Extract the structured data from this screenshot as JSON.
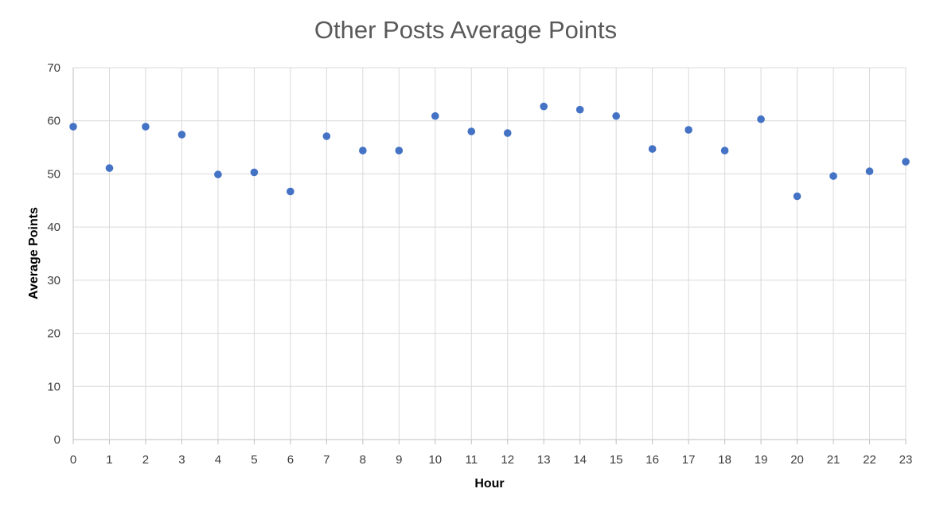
{
  "chart_data": {
    "type": "scatter",
    "title": "Other Posts Average Points",
    "xlabel": "Hour",
    "ylabel": "Average Points",
    "xlim": [
      0,
      23
    ],
    "ylim": [
      0,
      70
    ],
    "x_ticks": [
      "0",
      "1",
      "2",
      "3",
      "4",
      "5",
      "6",
      "7",
      "8",
      "9",
      "10",
      "11",
      "12",
      "13",
      "14",
      "15",
      "16",
      "17",
      "18",
      "19",
      "20",
      "21",
      "22",
      "23"
    ],
    "y_ticks": [
      "0",
      "10",
      "20",
      "30",
      "40",
      "50",
      "60",
      "70"
    ],
    "grid": true,
    "legend": "none",
    "series": [
      {
        "x": [
          0,
          1,
          2,
          3,
          4,
          5,
          6,
          7,
          8,
          9,
          10,
          11,
          12,
          13,
          14,
          15,
          16,
          17,
          18,
          19,
          20,
          21,
          22,
          23
        ],
        "y": [
          58.9,
          51.1,
          58.9,
          57.4,
          49.9,
          50.3,
          46.7,
          57.1,
          54.4,
          54.4,
          60.9,
          58.0,
          57.7,
          62.7,
          62.1,
          60.9,
          54.7,
          58.3,
          54.4,
          60.3,
          45.8,
          49.6,
          50.5,
          52.3
        ],
        "color": "#4472c4"
      }
    ]
  },
  "colors": {
    "grid": "#d9d9d9",
    "axis": "#bfbfbf",
    "marker": "#4472c4"
  }
}
